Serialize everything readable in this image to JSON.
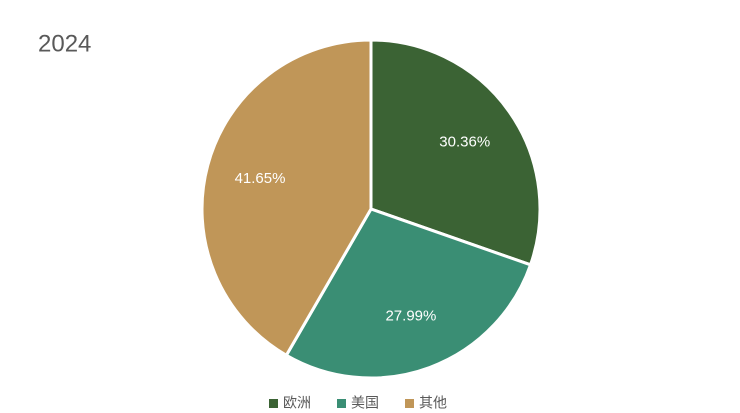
{
  "chart_data": {
    "type": "pie",
    "title": "2024",
    "categories": [
      "欧洲",
      "美国",
      "其他"
    ],
    "values": [
      30.36,
      27.99,
      41.65
    ],
    "value_labels": [
      "30.36%",
      "27.99%",
      "41.65%"
    ],
    "colors": [
      "#3b6334",
      "#3a8e74",
      "#c09658"
    ]
  }
}
